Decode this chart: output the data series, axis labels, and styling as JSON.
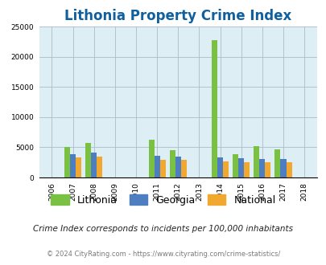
{
  "title": "Lithonia Property Crime Index",
  "years": [
    "2006",
    "2007",
    "2008",
    "2009",
    "2010",
    "2011",
    "2012",
    "2013",
    "2014",
    "2015",
    "2016",
    "2017",
    "2018"
  ],
  "lithonia": [
    0,
    5000,
    5700,
    0,
    0,
    6200,
    4500,
    0,
    22800,
    3900,
    5200,
    4700,
    0
  ],
  "georgia": [
    0,
    3900,
    4100,
    0,
    0,
    3600,
    3500,
    0,
    3300,
    3200,
    3100,
    3100,
    0
  ],
  "national": [
    0,
    3400,
    3500,
    0,
    0,
    3000,
    3000,
    0,
    2700,
    2600,
    2500,
    2500,
    0
  ],
  "lithonia_color": "#7ac143",
  "georgia_color": "#4d7ebf",
  "national_color": "#f0a830",
  "plot_bg": "#ddeef5",
  "ylim": [
    0,
    25000
  ],
  "yticks": [
    0,
    5000,
    10000,
    15000,
    20000,
    25000
  ],
  "ytick_labels": [
    "0",
    "5000",
    "10000",
    "15000",
    "20000",
    "25000"
  ],
  "grid_color": "#aabbcc",
  "title_color": "#1060a0",
  "title_fontsize": 12,
  "tick_fontsize": 6.5,
  "legend_fontsize": 9,
  "footnote1": "Crime Index corresponds to incidents per 100,000 inhabitants",
  "footnote2": "© 2024 CityRating.com - https://www.cityrating.com/crime-statistics/",
  "footnote1_color": "#222222",
  "footnote2_color": "#7a7a7a",
  "bar_width": 0.27
}
